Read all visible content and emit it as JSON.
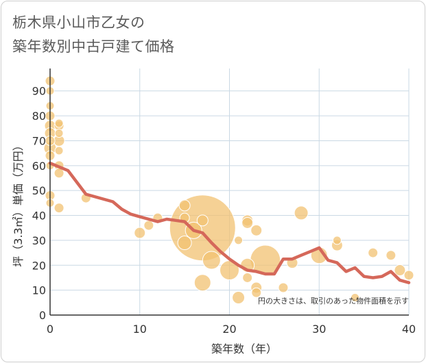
{
  "title_line1": "栃木県小山市乙女の",
  "title_line2": "築年数別中古戸建て価格",
  "chart_data": {
    "type": "scatter",
    "title": "栃木県小山市乙女の築年数別中古戸建て価格",
    "xlabel": "築年数（年）",
    "ylabel": "坪（3.3㎡）単価（万円）",
    "xlim": [
      0,
      40
    ],
    "ylim": [
      0,
      99
    ],
    "x_ticks": [
      "0",
      "10",
      "20",
      "30",
      "40"
    ],
    "y_ticks": [
      "0",
      "10",
      "20",
      "30",
      "40",
      "50",
      "60",
      "70",
      "80",
      "90"
    ],
    "grid": true,
    "note": "円の大きさは、取引のあった物件面積を示す",
    "colors": {
      "bubble": "#f2c272",
      "bubble_stroke": "#ffffff",
      "trend": "#d5685a",
      "grid": "#c9d8e4"
    },
    "series": [
      {
        "kind": "bubbles",
        "points": [
          {
            "x": 0,
            "y": 94,
            "s": 7
          },
          {
            "x": 0,
            "y": 90,
            "s": 6
          },
          {
            "x": 0,
            "y": 84,
            "s": 6
          },
          {
            "x": 0,
            "y": 80,
            "s": 7
          },
          {
            "x": 0,
            "y": 76,
            "s": 8
          },
          {
            "x": 0,
            "y": 73,
            "s": 8
          },
          {
            "x": 0,
            "y": 70,
            "s": 7
          },
          {
            "x": 0,
            "y": 67,
            "s": 9
          },
          {
            "x": 0,
            "y": 64,
            "s": 7
          },
          {
            "x": 0,
            "y": 60,
            "s": 6
          },
          {
            "x": 0,
            "y": 48,
            "s": 7
          },
          {
            "x": 0,
            "y": 45,
            "s": 6
          },
          {
            "x": 1,
            "y": 77,
            "s": 6
          },
          {
            "x": 1,
            "y": 76,
            "s": 7
          },
          {
            "x": 1,
            "y": 73,
            "s": 6
          },
          {
            "x": 1,
            "y": 70,
            "s": 8
          },
          {
            "x": 1,
            "y": 66,
            "s": 6
          },
          {
            "x": 1,
            "y": 60,
            "s": 7
          },
          {
            "x": 1,
            "y": 57,
            "s": 7
          },
          {
            "x": 1,
            "y": 43,
            "s": 7
          },
          {
            "x": 4,
            "y": 47,
            "s": 7
          },
          {
            "x": 10,
            "y": 33,
            "s": 8
          },
          {
            "x": 11,
            "y": 36,
            "s": 7
          },
          {
            "x": 12,
            "y": 39,
            "s": 7
          },
          {
            "x": 15,
            "y": 44,
            "s": 8
          },
          {
            "x": 15,
            "y": 39,
            "s": 7
          },
          {
            "x": 15,
            "y": 29,
            "s": 10
          },
          {
            "x": 16,
            "y": 34,
            "s": 12
          },
          {
            "x": 17,
            "y": 35,
            "s": 48
          },
          {
            "x": 17,
            "y": 38,
            "s": 8
          },
          {
            "x": 17,
            "y": 13,
            "s": 12
          },
          {
            "x": 18,
            "y": 22,
            "s": 13
          },
          {
            "x": 20,
            "y": 18,
            "s": 14
          },
          {
            "x": 21,
            "y": 30,
            "s": 6
          },
          {
            "x": 21,
            "y": 7,
            "s": 9
          },
          {
            "x": 22,
            "y": 38,
            "s": 8
          },
          {
            "x": 22,
            "y": 37,
            "s": 8
          },
          {
            "x": 22,
            "y": 20,
            "s": 10
          },
          {
            "x": 22,
            "y": 15,
            "s": 7
          },
          {
            "x": 23,
            "y": 34,
            "s": 8
          },
          {
            "x": 23,
            "y": 11,
            "s": 8
          },
          {
            "x": 23,
            "y": 9,
            "s": 7
          },
          {
            "x": 24,
            "y": 22,
            "s": 22
          },
          {
            "x": 26,
            "y": 11,
            "s": 7
          },
          {
            "x": 27,
            "y": 21,
            "s": 8
          },
          {
            "x": 28,
            "y": 41,
            "s": 10
          },
          {
            "x": 30,
            "y": 24,
            "s": 12
          },
          {
            "x": 32,
            "y": 30,
            "s": 6
          },
          {
            "x": 32,
            "y": 28,
            "s": 8
          },
          {
            "x": 34,
            "y": 7,
            "s": 6
          },
          {
            "x": 36,
            "y": 25,
            "s": 7
          },
          {
            "x": 38,
            "y": 24,
            "s": 7
          },
          {
            "x": 39,
            "y": 18,
            "s": 8
          },
          {
            "x": 40,
            "y": 16,
            "s": 7
          }
        ]
      },
      {
        "kind": "trend",
        "x": [
          0,
          2,
          4,
          7,
          8,
          9,
          10,
          11,
          12,
          13,
          14,
          15,
          16,
          17,
          18,
          19,
          20,
          21,
          22,
          23,
          24,
          25,
          26,
          27,
          28,
          29,
          30,
          31,
          32,
          33,
          34,
          35,
          36,
          37,
          38,
          39,
          40
        ],
        "y": [
          61,
          58,
          48.5,
          45.5,
          42.5,
          40.5,
          39.5,
          38.5,
          37.5,
          38.5,
          38,
          37.5,
          34,
          33,
          29,
          25.5,
          22.5,
          20,
          18,
          17.5,
          16.5,
          16.5,
          22.5,
          22.5,
          24,
          25.5,
          27,
          22,
          21,
          17.5,
          19,
          15.5,
          15,
          15.5,
          17.5,
          14,
          13
        ]
      }
    ]
  }
}
